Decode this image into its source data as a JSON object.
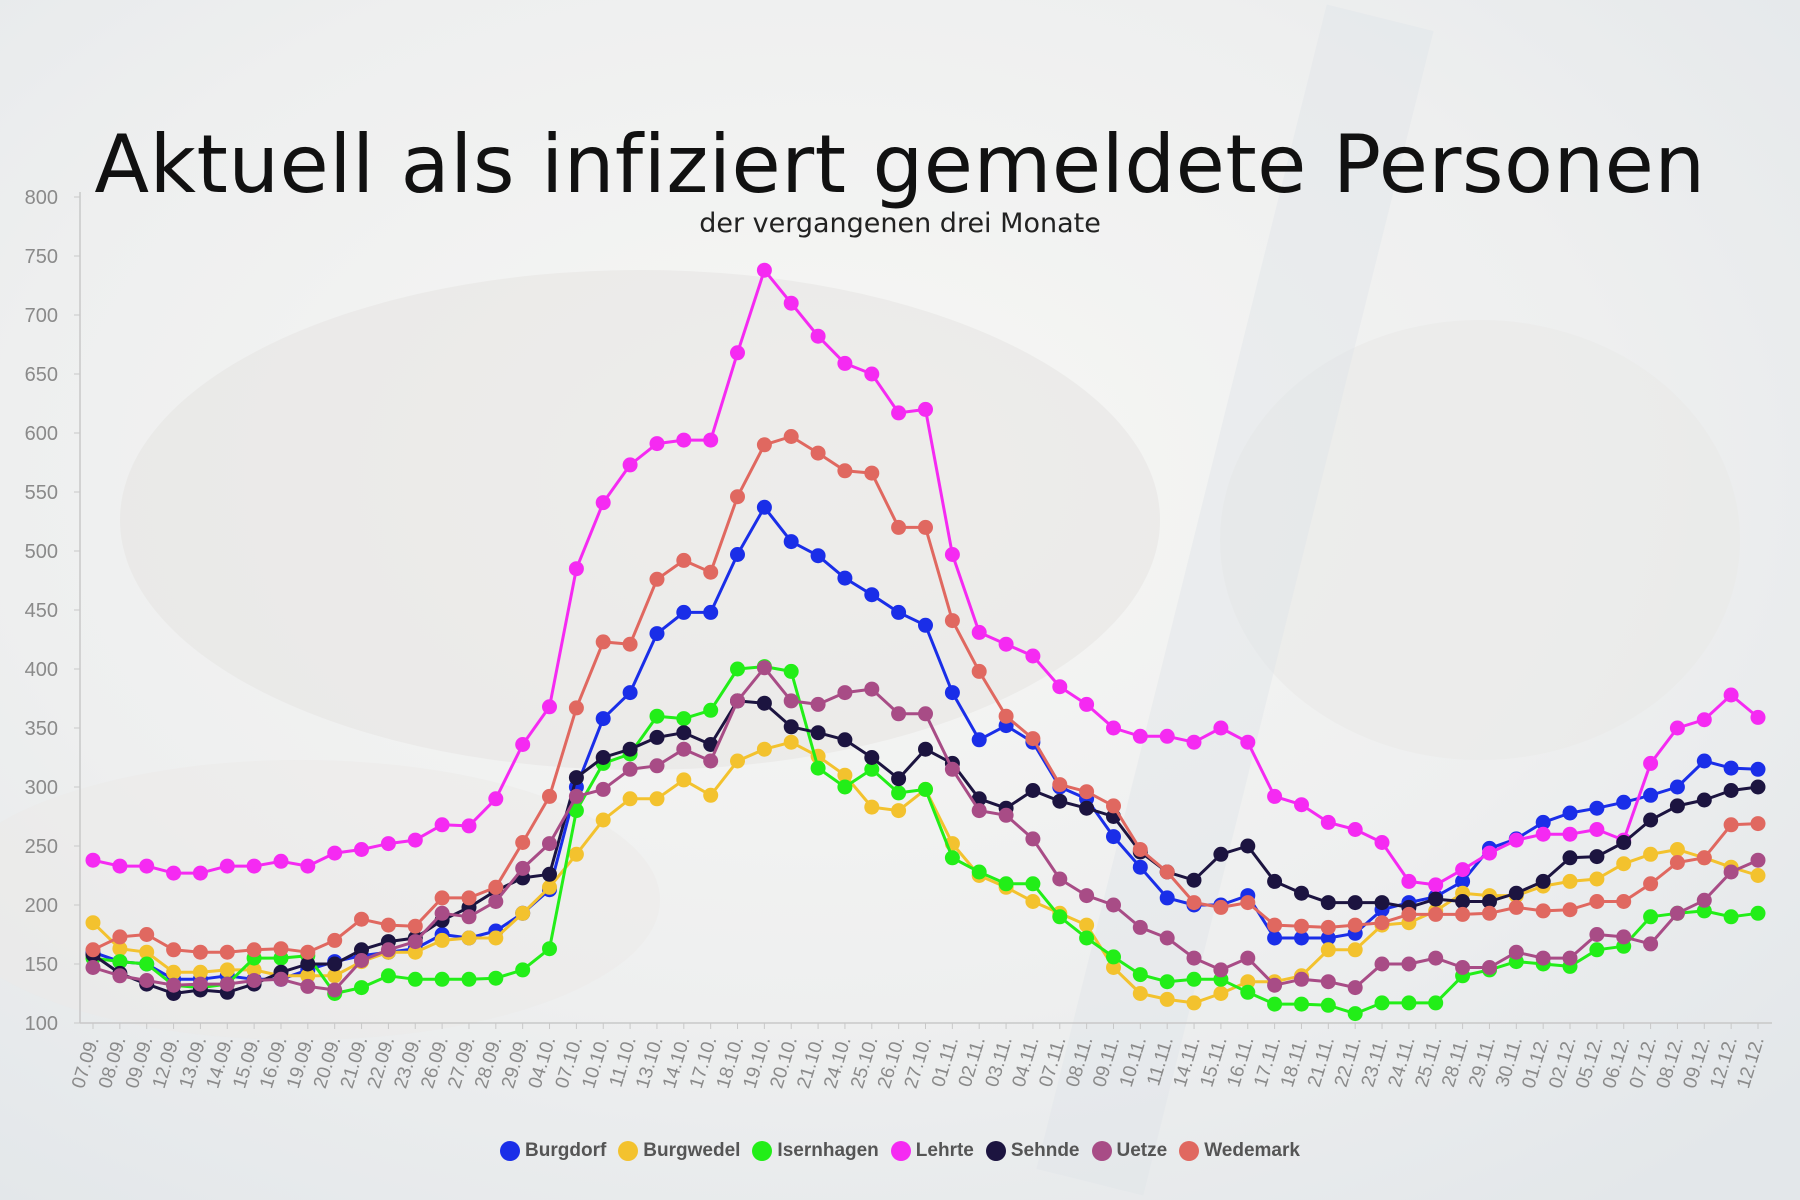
{
  "chart_data": {
    "type": "line",
    "title": "Aktuell als infiziert gemeldete Personen",
    "subtitle": "der vergangenen drei Monate",
    "xlabel": "",
    "ylabel": "",
    "ylim": [
      100,
      800
    ],
    "yticks": [
      100,
      150,
      200,
      250,
      300,
      350,
      400,
      450,
      500,
      550,
      600,
      650,
      700,
      750,
      800
    ],
    "grid": false,
    "legend_position": "bottom",
    "categories": [
      "07.09.",
      "08.09.",
      "09.09.",
      "12.09.",
      "13.09.",
      "14.09.",
      "15.09.",
      "16.09.",
      "19.09.",
      "20.09.",
      "21.09.",
      "22.09.",
      "23.09.",
      "26.09.",
      "27.09.",
      "28.09.",
      "29.09.",
      "04.10.",
      "07.10.",
      "10.10.",
      "11.10.",
      "13.10.",
      "14.10.",
      "17.10.",
      "18.10.",
      "19.10.",
      "20.10.",
      "21.10.",
      "24.10.",
      "25.10.",
      "26.10.",
      "27.10.",
      "01.11.",
      "02.11.",
      "03.11.",
      "04.11.",
      "07.11.",
      "08.11.",
      "09.11.",
      "10.11.",
      "11.11.",
      "14.11.",
      "15.11.",
      "16.11.",
      "17.11.",
      "18.11.",
      "21.11.",
      "22.11.",
      "23.11.",
      "24.11.",
      "25.11.",
      "28.11.",
      "29.11.",
      "30.11.",
      "01.12.",
      "02.12.",
      "05.12.",
      "06.12.",
      "07.12.",
      "08.12.",
      "09.12.",
      "12.12.",
      "12.12."
    ],
    "series": [
      {
        "name": "Burgdorf",
        "color": "#1a2ee8",
        "values": [
          160,
          152,
          150,
          137,
          137,
          140,
          137,
          137,
          145,
          152,
          157,
          160,
          163,
          175,
          172,
          178,
          193,
          213,
          300,
          358,
          380,
          430,
          448,
          448,
          497,
          537,
          508,
          496,
          477,
          463,
          448,
          437,
          380,
          340,
          352,
          338,
          300,
          290,
          258,
          232,
          206,
          200,
          200,
          208,
          172,
          172,
          172,
          176,
          196,
          202,
          207,
          220,
          248,
          256,
          270,
          278,
          282,
          287,
          293,
          300,
          322,
          316,
          315
        ]
      },
      {
        "name": "Burgwedel",
        "color": "#f3c22e",
        "values": [
          185,
          163,
          160,
          143,
          143,
          145,
          145,
          140,
          140,
          140,
          152,
          160,
          160,
          170,
          172,
          172,
          193,
          215,
          243,
          272,
          290,
          290,
          306,
          293,
          322,
          332,
          338,
          326,
          310,
          283,
          280,
          298,
          252,
          225,
          215,
          203,
          193,
          183,
          147,
          125,
          120,
          117,
          125,
          135,
          135,
          140,
          162,
          162,
          183,
          185,
          195,
          210,
          208,
          208,
          216,
          220,
          222,
          235,
          243,
          247,
          240,
          232,
          225
        ]
      },
      {
        "name": "Isernhagen",
        "color": "#22ee18",
        "values": [
          155,
          152,
          150,
          132,
          130,
          133,
          155,
          155,
          157,
          125,
          130,
          140,
          137,
          137,
          137,
          138,
          145,
          163,
          280,
          320,
          328,
          360,
          358,
          365,
          400,
          402,
          398,
          316,
          300,
          315,
          295,
          298,
          240,
          228,
          218,
          218,
          190,
          172,
          156,
          141,
          135,
          137,
          137,
          126,
          116,
          116,
          115,
          108,
          117,
          117,
          117,
          140,
          145,
          152,
          150,
          148,
          162,
          165,
          190,
          193,
          195,
          190,
          193
        ]
      },
      {
        "name": "Lehrte",
        "color": "#f52af2",
        "values": [
          238,
          233,
          233,
          227,
          227,
          233,
          233,
          237,
          233,
          244,
          247,
          252,
          255,
          268,
          267,
          290,
          336,
          368,
          485,
          541,
          573,
          591,
          594,
          594,
          668,
          738,
          710,
          682,
          659,
          650,
          617,
          620,
          497,
          431,
          421,
          411,
          385,
          370,
          350,
          343,
          343,
          338,
          350,
          338,
          292,
          285,
          270,
          264,
          253,
          220,
          217,
          230,
          244,
          255,
          260,
          260,
          264,
          255,
          320,
          350,
          357,
          378,
          359
        ]
      },
      {
        "name": "Sehnde",
        "color": "#1c1440",
        "values": [
          158,
          142,
          133,
          125,
          128,
          126,
          133,
          143,
          150,
          150,
          162,
          169,
          172,
          187,
          198,
          212,
          223,
          226,
          308,
          325,
          332,
          342,
          346,
          336,
          373,
          371,
          351,
          346,
          340,
          325,
          307,
          332,
          320,
          290,
          282,
          297,
          288,
          282,
          275,
          245,
          228,
          221,
          243,
          250,
          220,
          210,
          202,
          202,
          202,
          198,
          205,
          203,
          203,
          210,
          220,
          240,
          241,
          253,
          272,
          284,
          289,
          297,
          300
        ]
      },
      {
        "name": "Uetze",
        "color": "#a84c86",
        "values": [
          147,
          140,
          136,
          132,
          133,
          133,
          136,
          137,
          131,
          128,
          153,
          162,
          169,
          193,
          190,
          203,
          231,
          252,
          292,
          298,
          315,
          318,
          332,
          322,
          373,
          401,
          373,
          370,
          380,
          383,
          362,
          362,
          315,
          280,
          276,
          256,
          222,
          208,
          200,
          181,
          172,
          155,
          145,
          155,
          132,
          137,
          135,
          130,
          150,
          150,
          155,
          147,
          147,
          160,
          155,
          155,
          175,
          173,
          167,
          193,
          204,
          228,
          238
        ]
      },
      {
        "name": "Wedemark",
        "color": "#e06860",
        "values": [
          162,
          173,
          175,
          162,
          160,
          160,
          162,
          163,
          160,
          170,
          188,
          183,
          182,
          206,
          206,
          215,
          253,
          292,
          367,
          423,
          421,
          476,
          492,
          482,
          546,
          590,
          597,
          583,
          568,
          566,
          520,
          520,
          441,
          398,
          360,
          341,
          302,
          296,
          284,
          247,
          228,
          202,
          198,
          202,
          183,
          182,
          181,
          183,
          185,
          192,
          192,
          192,
          193,
          198,
          195,
          196,
          203,
          203,
          218,
          236,
          240,
          268,
          269
        ]
      }
    ]
  }
}
